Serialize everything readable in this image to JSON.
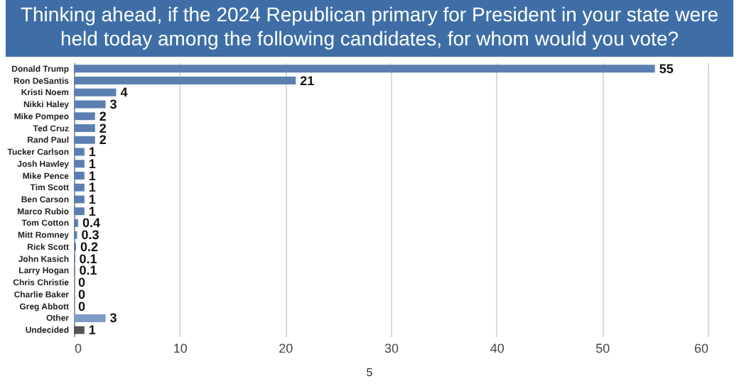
{
  "chart_data": {
    "type": "bar",
    "orientation": "horizontal",
    "title": "Thinking ahead, if the 2024 Republican primary for President in your state were held today among the following candidates, for whom would you vote?",
    "categories": [
      "Donald Trump",
      "Ron DeSantis",
      "Kristi Noem",
      "Nikki Haley",
      "Mike Pompeo",
      "Ted Cruz",
      "Rand Paul",
      "Tucker Carlson",
      "Josh Hawley",
      "Mike Pence",
      "Tim Scott",
      "Ben Carson",
      "Marco Rubio",
      "Tom Cotton",
      "Mitt Romney",
      "Rick Scott",
      "John Kasich",
      "Larry Hogan",
      "Chris Christie",
      "Charlie Baker",
      "Greg Abbott",
      "Other",
      "Undecided"
    ],
    "values": [
      55,
      21,
      4,
      3,
      2,
      2,
      2,
      1,
      1,
      1,
      1,
      1,
      1,
      0.4,
      0.3,
      0.2,
      0.1,
      0.1,
      0,
      0,
      0,
      3,
      1
    ],
    "colors": [
      "#5b7fb0",
      "#5b7fb0",
      "#5b7fb0",
      "#5b7fb0",
      "#5b7fb0",
      "#5b7fb0",
      "#5b7fb0",
      "#5b7fb0",
      "#5b7fb0",
      "#5b7fb0",
      "#5b7fb0",
      "#5b7fb0",
      "#5b7fb0",
      "#5b7fb0",
      "#5b7fb0",
      "#5b7fb0",
      "#5b7fb0",
      "#5b7fb0",
      "#5b7fb0",
      "#5b7fb0",
      "#5b7fb0",
      "#7f9cc8",
      "#555555"
    ],
    "xlim": [
      0,
      60
    ],
    "xticks": [
      0,
      10,
      20,
      30,
      40,
      50,
      60
    ],
    "grid": "x",
    "data_labels": true,
    "annotations": [
      "5"
    ]
  }
}
